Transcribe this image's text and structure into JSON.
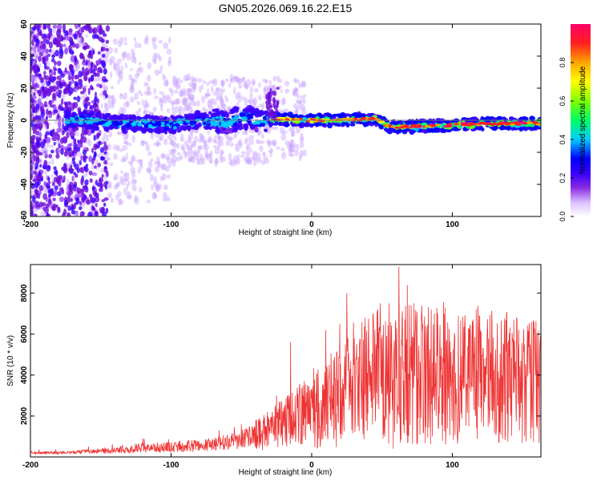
{
  "title": "GN05.2026.069.16.22.E15",
  "chart_data": [
    {
      "type": "heatmap",
      "title": "GN05.2026.069.16.22.E15",
      "xlabel": "Height of straight line (km)",
      "ylabel": "Frequency (Hz)",
      "xlim": [
        -200,
        163
      ],
      "ylim": [
        -60,
        60
      ],
      "xticks": [
        -200,
        -100,
        0,
        100
      ],
      "yticks": [
        -60,
        -40,
        -20,
        0,
        20,
        40,
        60
      ],
      "ridge_center_hz": [
        {
          "x": -160,
          "y": 0
        },
        {
          "x": -140,
          "y": -2
        },
        {
          "x": -120,
          "y": -2
        },
        {
          "x": -100,
          "y": -3
        },
        {
          "x": -80,
          "y": 0
        },
        {
          "x": -60,
          "y": -1
        },
        {
          "x": -45,
          "y": 2
        },
        {
          "x": -35,
          "y": -2
        },
        {
          "x": -27,
          "y": 1
        },
        {
          "x": -10,
          "y": 0
        },
        {
          "x": 20,
          "y": 0
        },
        {
          "x": 45,
          "y": 1
        },
        {
          "x": 55,
          "y": -4
        },
        {
          "x": 70,
          "y": -4
        },
        {
          "x": 100,
          "y": -3
        },
        {
          "x": 130,
          "y": -2
        },
        {
          "x": 163,
          "y": -2
        }
      ],
      "colorbar": {
        "label": "Normalized spectral amplitude",
        "range": [
          0,
          1
        ],
        "ticks": [
          0.0,
          0.2,
          0.4,
          0.6,
          0.8
        ],
        "tick_labels": [
          "0.0",
          "0.2",
          "0.4",
          "0.6",
          "0.8"
        ],
        "colors": [
          "#ffffff",
          "#dcc3ff",
          "#8a2be2",
          "#3b00ff",
          "#0000ff",
          "#00ccff",
          "#00ff66",
          "#7fff00",
          "#ffff00",
          "#ffa500",
          "#ff2020",
          "#ff0066"
        ]
      }
    },
    {
      "type": "line",
      "xlabel": "Height of straight line (km)",
      "ylabel": "SNR (10 * v/v)",
      "xlim": [
        -200,
        163
      ],
      "ylim": [
        0,
        9400
      ],
      "xticks": [
        -200,
        -100,
        0,
        100
      ],
      "yticks": [
        2000,
        4000,
        6000,
        8000
      ],
      "series": [
        {
          "name": "SNR",
          "color": "#ee3333",
          "x": [
            -200,
            -180,
            -160,
            -140,
            -120,
            -100,
            -80,
            -60,
            -40,
            -30,
            -20,
            -10,
            0,
            10,
            20,
            30,
            40,
            50,
            60,
            70,
            80,
            90,
            100,
            110,
            120,
            130,
            140,
            150,
            163
          ],
          "y": [
            200,
            210,
            260,
            330,
            450,
            480,
            560,
            720,
            1050,
            1300,
            1700,
            2000,
            2300,
            2600,
            3000,
            3400,
            3800,
            3950,
            4100,
            4100,
            4000,
            3950,
            3850,
            3800,
            3800,
            3800,
            3750,
            3700,
            3700
          ],
          "peaks": [
            {
              "x": -120,
              "y": 900
            },
            {
              "x": -50,
              "y": 1600
            },
            {
              "x": -25,
              "y": 3000
            },
            {
              "x": -15,
              "y": 5600
            },
            {
              "x": 10,
              "y": 6200
            },
            {
              "x": 20,
              "y": 6500
            },
            {
              "x": 25,
              "y": 8000
            },
            {
              "x": 38,
              "y": 6800
            },
            {
              "x": 45,
              "y": 6200
            },
            {
              "x": 55,
              "y": 7500
            },
            {
              "x": 62,
              "y": 9300
            },
            {
              "x": 68,
              "y": 8400
            },
            {
              "x": 85,
              "y": 7200
            },
            {
              "x": 95,
              "y": 7300
            },
            {
              "x": 120,
              "y": 6200
            },
            {
              "x": 140,
              "y": 5700
            },
            {
              "x": 160,
              "y": 5200
            }
          ],
          "troughs": [
            {
              "x": 58,
              "y": 400
            },
            {
              "x": 63,
              "y": 700
            },
            {
              "x": 160,
              "y": 1500
            }
          ]
        }
      ]
    }
  ]
}
